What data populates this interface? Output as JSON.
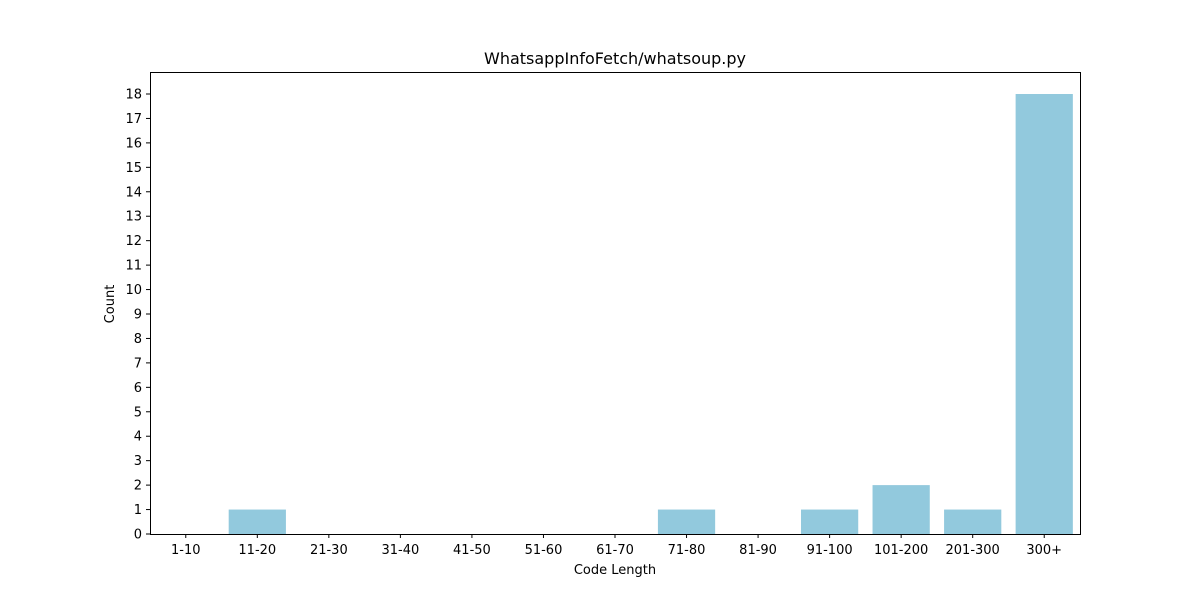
{
  "chart_data": {
    "type": "bar",
    "title": "WhatsappInfoFetch/whatsoup.py",
    "xlabel": "Code Length",
    "ylabel": "Count",
    "categories": [
      "1-10",
      "11-20",
      "21-30",
      "31-40",
      "41-50",
      "51-60",
      "61-70",
      "71-80",
      "81-90",
      "91-100",
      "101-200",
      "201-300",
      "300+"
    ],
    "values": [
      0,
      1,
      0,
      0,
      0,
      0,
      0,
      1,
      0,
      1,
      2,
      1,
      18
    ],
    "ylim": [
      0,
      18
    ],
    "yticks": [
      0,
      1,
      2,
      3,
      4,
      5,
      6,
      7,
      8,
      9,
      10,
      11,
      12,
      13,
      14,
      15,
      16,
      17,
      18
    ],
    "bar_color": "#92c9dd",
    "grid": false,
    "legend": "none"
  }
}
